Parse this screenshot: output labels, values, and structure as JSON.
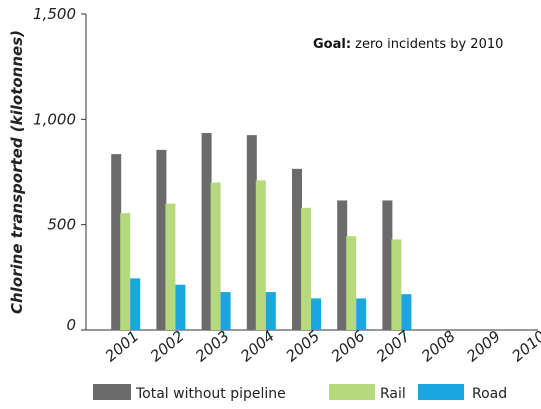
{
  "chart_data": {
    "type": "bar",
    "ylabel": "Chlorine transported (kilotonnes)",
    "xlabel": "",
    "ylim": [
      0,
      1500
    ],
    "yticks": [
      0,
      500,
      1000,
      1500
    ],
    "ytick_labels": [
      "0",
      "500",
      "1,000",
      "1,500"
    ],
    "categories": [
      "2001",
      "2002",
      "2003",
      "2004",
      "2005",
      "2006",
      "2007",
      "2008",
      "2009",
      "2010"
    ],
    "series": [
      {
        "name": "Total without pipeline",
        "color": "#6b6b6b",
        "values": [
          835,
          855,
          935,
          925,
          765,
          615,
          615,
          null,
          null,
          null
        ]
      },
      {
        "name": "Rail",
        "color": "#b5d97c",
        "values": [
          555,
          600,
          700,
          710,
          580,
          445,
          430,
          null,
          null,
          null
        ]
      },
      {
        "name": "Road",
        "color": "#1aa6df",
        "values": [
          245,
          215,
          180,
          180,
          150,
          150,
          170,
          null,
          null,
          null
        ]
      }
    ],
    "annotation": {
      "bold": "Goal:",
      "text": " zero incidents by 2010"
    },
    "legend_placement": "bottom",
    "grid": false
  }
}
